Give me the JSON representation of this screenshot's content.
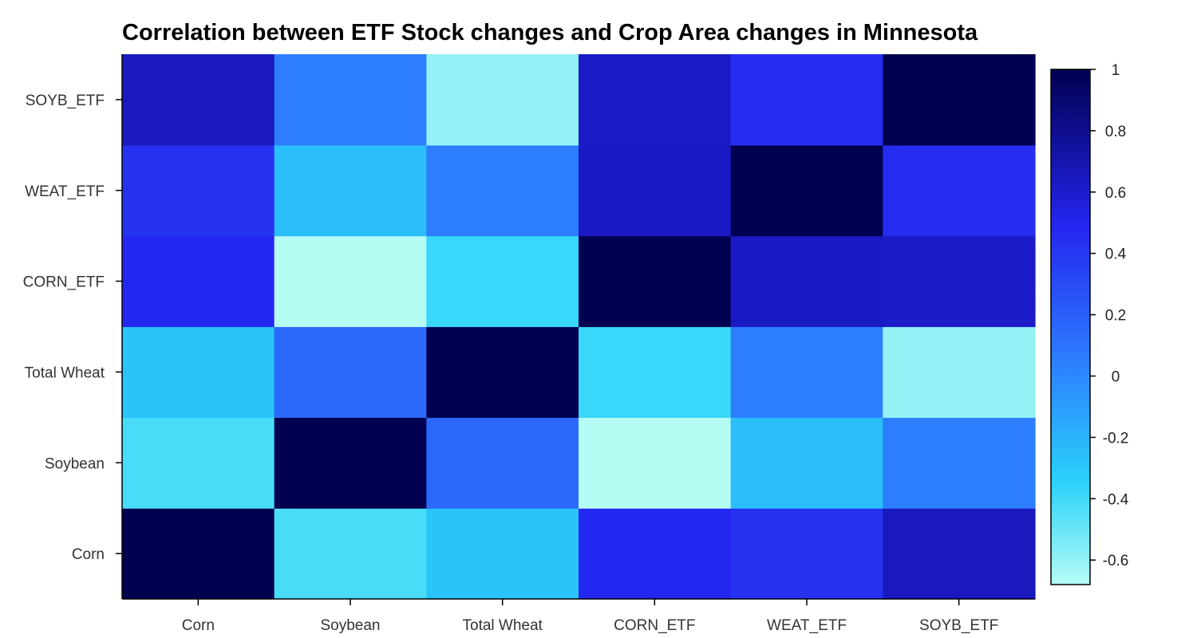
{
  "chart_data": {
    "type": "heatmap",
    "title": "Correlation between ETF Stock changes and Crop Area changes in Minnesota",
    "x_categories": [
      "Corn",
      "Soybean",
      "Total Wheat",
      "CORN_ETF",
      "WEAT_ETF",
      "SOYB_ETF"
    ],
    "y_categories": [
      "Corn",
      "Soybean",
      "Total Wheat",
      "CORN_ETF",
      "WEAT_ETF",
      "SOYB_ETF"
    ],
    "values": [
      [
        1.0,
        -0.42,
        -0.28,
        0.48,
        0.42,
        0.65
      ],
      [
        -0.42,
        1.0,
        0.15,
        -0.68,
        -0.25,
        0.05
      ],
      [
        -0.28,
        0.15,
        1.0,
        -0.38,
        0.05,
        -0.6
      ],
      [
        0.48,
        -0.68,
        -0.38,
        1.0,
        0.63,
        0.62
      ],
      [
        0.42,
        -0.25,
        0.05,
        0.63,
        1.0,
        0.45
      ],
      [
        0.65,
        0.05,
        -0.6,
        0.62,
        0.45,
        1.0
      ]
    ],
    "colorscale_range": [
      -0.68,
      1.0
    ],
    "colorbar_ticks": [
      "1",
      "0.8",
      "0.6",
      "0.4",
      "0.2",
      "0",
      "-0.2",
      "-0.4",
      "-0.6"
    ],
    "colors": {
      "low": "#b5fcf5",
      "mid_low": "#2ad2fa",
      "mid": "#2c78fe",
      "mid_high": "#2424ee",
      "high": "#000050"
    },
    "grid": false,
    "legend": "right colorbar"
  }
}
